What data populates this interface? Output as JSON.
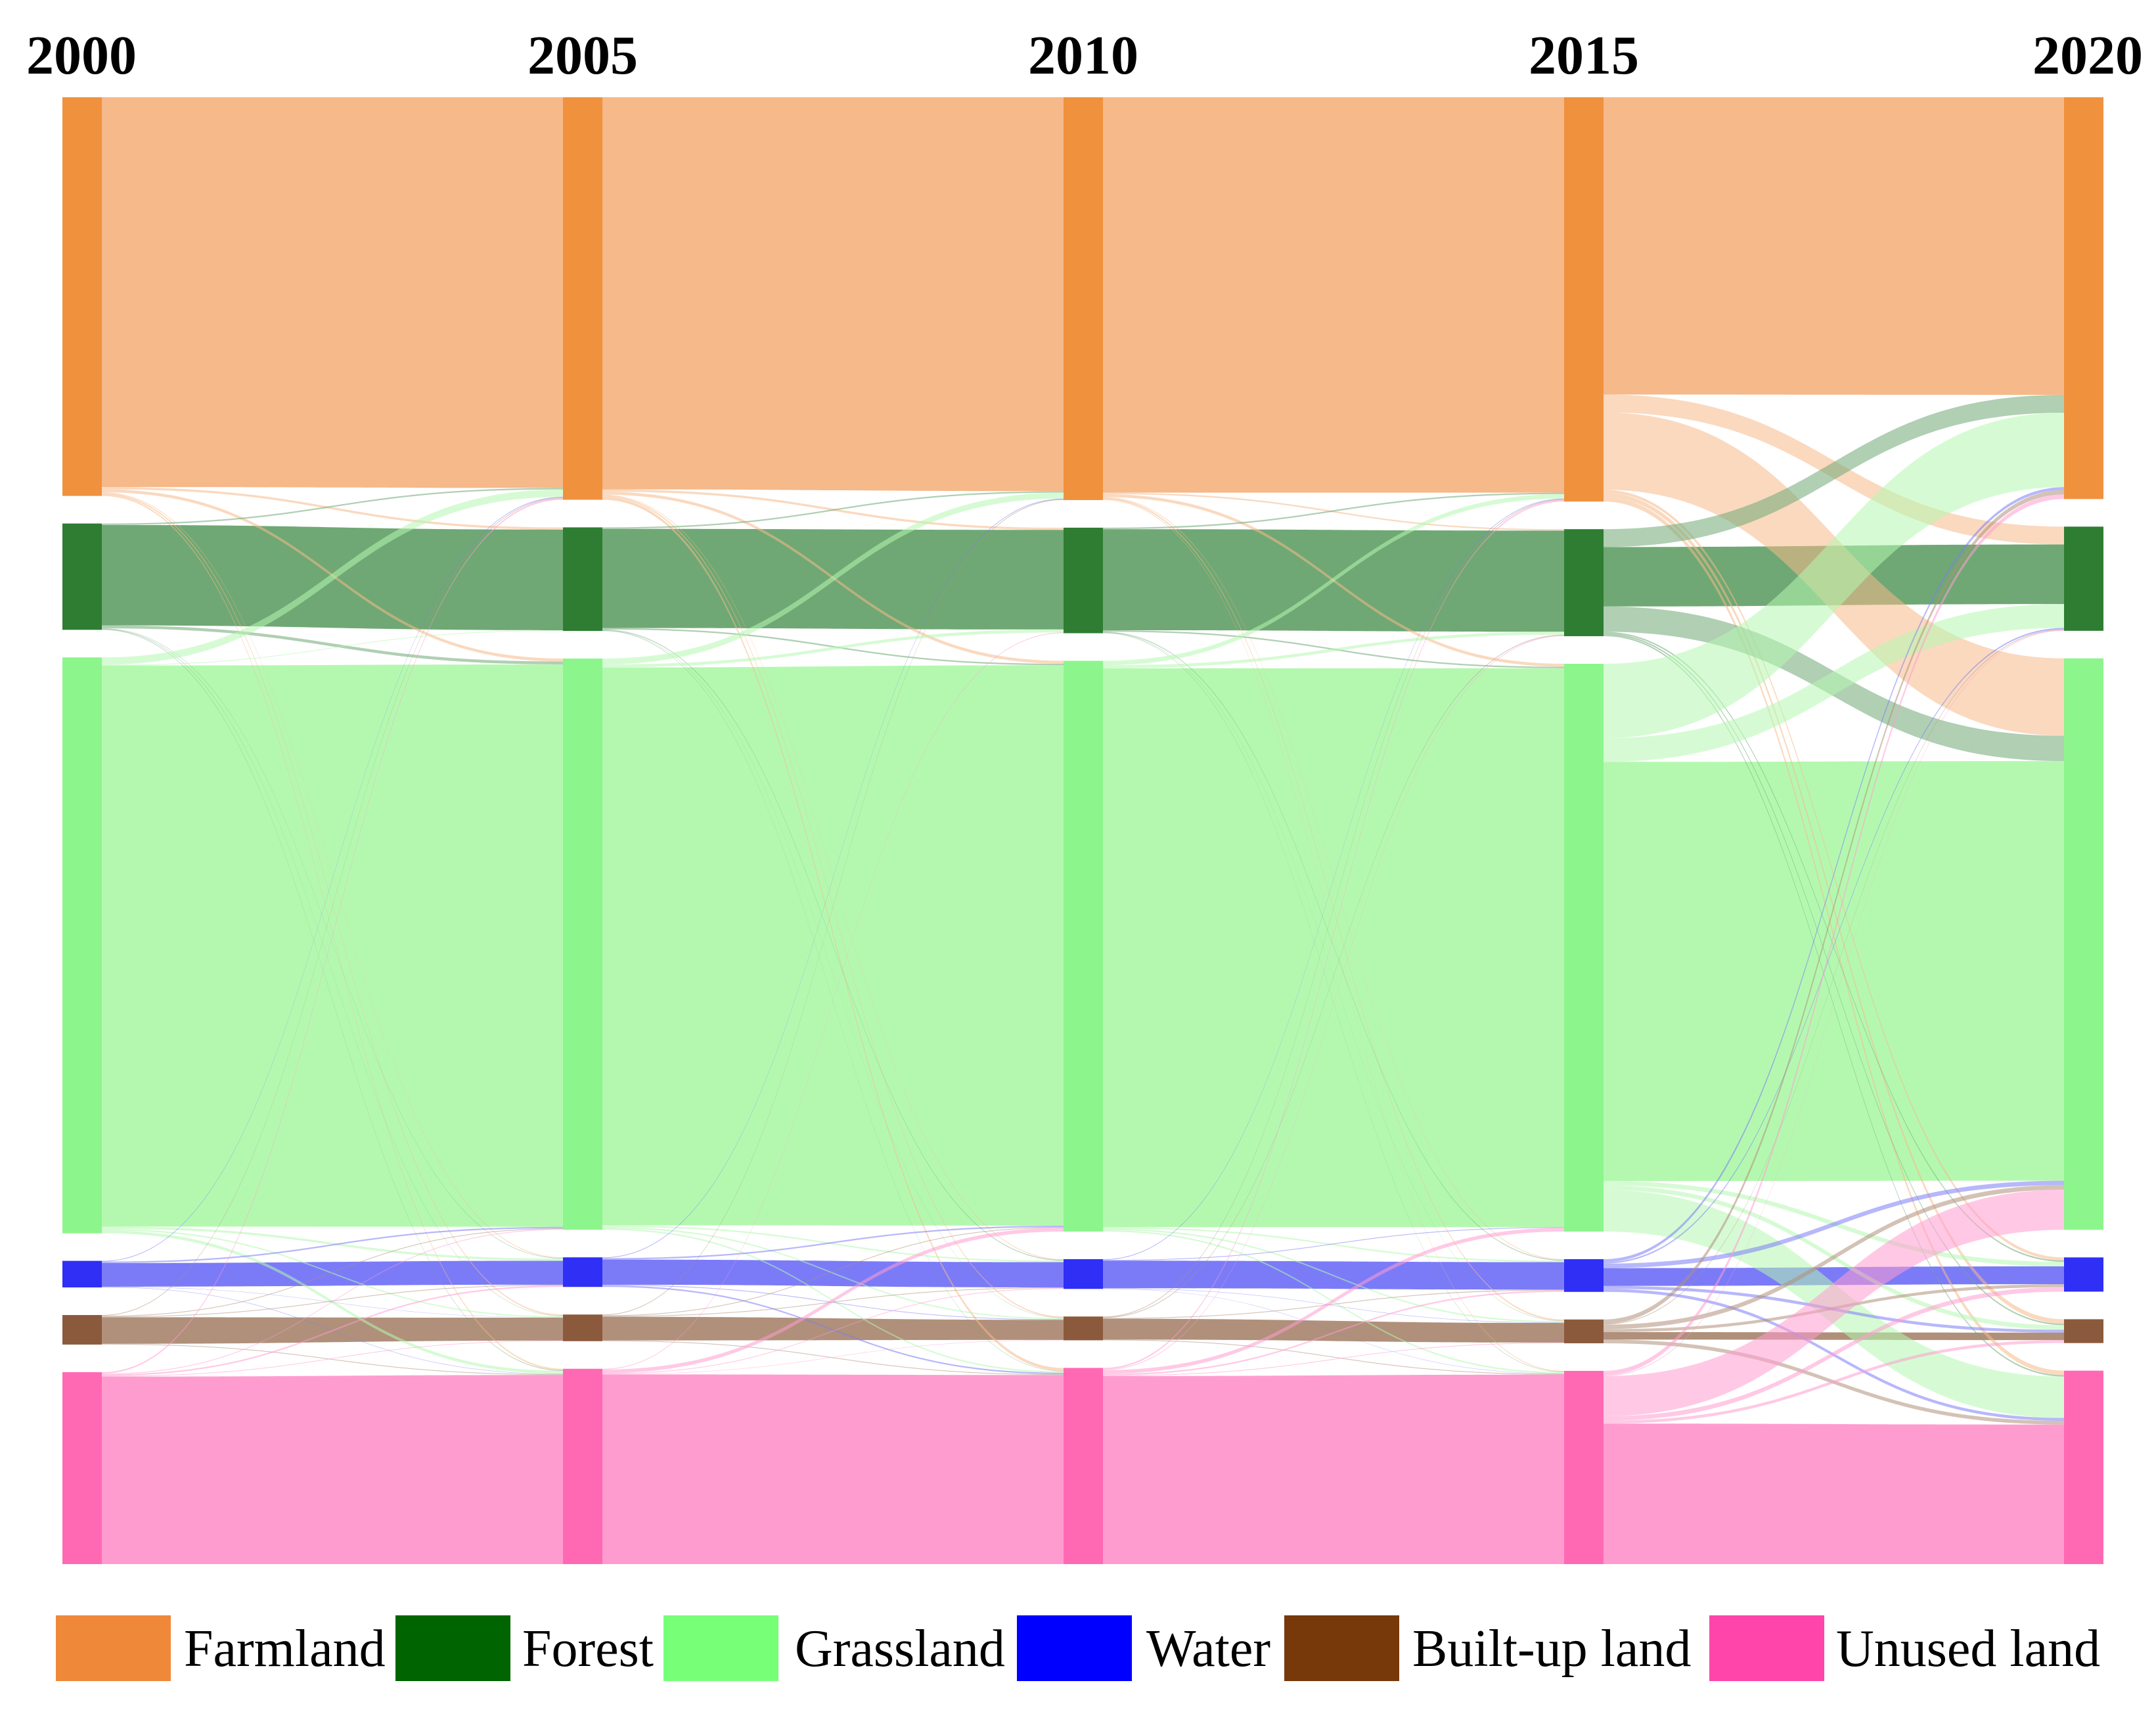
{
  "chart_data": {
    "type": "sankey",
    "title": "",
    "years": [
      "2000",
      "2005",
      "2010",
      "2015",
      "2020"
    ],
    "categories": [
      {
        "name": "Farmland",
        "color": "#F0913E",
        "link_color": "#F5B98A",
        "legend_color": "#F0883A"
      },
      {
        "name": "Forest",
        "color": "#2E7D32",
        "link_color": "#6FA874",
        "legend_color": "#006400"
      },
      {
        "name": "Grassland",
        "color": "#8CF58C",
        "link_color": "#B4F8B0",
        "legend_color": "#77FF77"
      },
      {
        "name": "Water",
        "color": "#2F2FF5",
        "link_color": "#7B7BF8",
        "legend_color": "#0000FF"
      },
      {
        "name": "Built-up land",
        "color": "#8B5A3C",
        "link_color": "#B0907A",
        "legend_color": "#77380A"
      },
      {
        "name": "Unused land",
        "color": "#FF69B4",
        "link_color": "#FF9CCF",
        "legend_color": "#FF44AA"
      }
    ],
    "node_values": {
      "2000": [
        27.0,
        7.2,
        39.0,
        1.8,
        2.0,
        13.0
      ],
      "2005": [
        27.2,
        7.0,
        38.6,
        2.0,
        1.8,
        13.2
      ],
      "2010": [
        27.1,
        7.1,
        38.4,
        2.0,
        1.6,
        13.2
      ],
      "2015": [
        27.2,
        7.2,
        38.2,
        2.2,
        1.6,
        13.0
      ],
      "2020": [
        27.0,
        7.0,
        38.4,
        2.3,
        1.6,
        13.0
      ]
    },
    "transitions": [
      {
        "period": "2000-2005",
        "matrix": [
          [
            26.4,
            0.15,
            0.2,
            0.05,
            0.1,
            0.1
          ],
          [
            0.1,
            6.8,
            0.2,
            0.03,
            0.03,
            0.04
          ],
          [
            0.5,
            0.05,
            38.0,
            0.15,
            0.1,
            0.2
          ],
          [
            0.05,
            0.0,
            0.1,
            1.6,
            0.02,
            0.03
          ],
          [
            0.05,
            0.0,
            0.05,
            0.05,
            1.8,
            0.05
          ],
          [
            0.1,
            0.0,
            0.05,
            0.1,
            0.05,
            12.7
          ]
        ]
      },
      {
        "period": "2005-2010",
        "matrix": [
          [
            26.5,
            0.15,
            0.2,
            0.05,
            0.1,
            0.2
          ],
          [
            0.1,
            6.7,
            0.1,
            0.05,
            0.02,
            0.03
          ],
          [
            0.4,
            0.2,
            37.7,
            0.1,
            0.1,
            0.1
          ],
          [
            0.05,
            0.0,
            0.1,
            1.7,
            0.05,
            0.1
          ],
          [
            0.05,
            0.0,
            0.05,
            0.05,
            1.6,
            0.05
          ],
          [
            0.0,
            0.05,
            0.25,
            0.05,
            0.03,
            12.82
          ]
        ]
      },
      {
        "period": "2010-2015",
        "matrix": [
          [
            26.6,
            0.1,
            0.2,
            0.05,
            0.1,
            0.05
          ],
          [
            0.1,
            6.8,
            0.1,
            0.05,
            0.02,
            0.03
          ],
          [
            0.3,
            0.2,
            37.6,
            0.1,
            0.1,
            0.1
          ],
          [
            0.05,
            0.0,
            0.05,
            1.85,
            0.03,
            0.02
          ],
          [
            0.05,
            0.05,
            0.0,
            0.05,
            1.4,
            0.05
          ],
          [
            0.1,
            0.05,
            0.25,
            0.1,
            0.05,
            12.65
          ]
        ]
      },
      {
        "period": "2015-2020",
        "matrix": [
          [
            20.0,
            1.2,
            5.2,
            0.2,
            0.3,
            0.3
          ],
          [
            1.2,
            4.0,
            1.7,
            0.1,
            0.1,
            0.1
          ],
          [
            5.0,
            1.6,
            28.2,
            0.3,
            0.3,
            2.8
          ],
          [
            0.2,
            0.1,
            0.3,
            1.2,
            0.2,
            0.2
          ],
          [
            0.3,
            0.05,
            0.3,
            0.2,
            0.5,
            0.25
          ],
          [
            0.3,
            0.05,
            2.7,
            0.3,
            0.2,
            9.45
          ]
        ]
      }
    ],
    "legend": {
      "placement": "bottom",
      "entries": [
        "Farmland",
        "Forest",
        "Grassland",
        "Water",
        "Built-up land",
        "Unused land"
      ]
    }
  }
}
